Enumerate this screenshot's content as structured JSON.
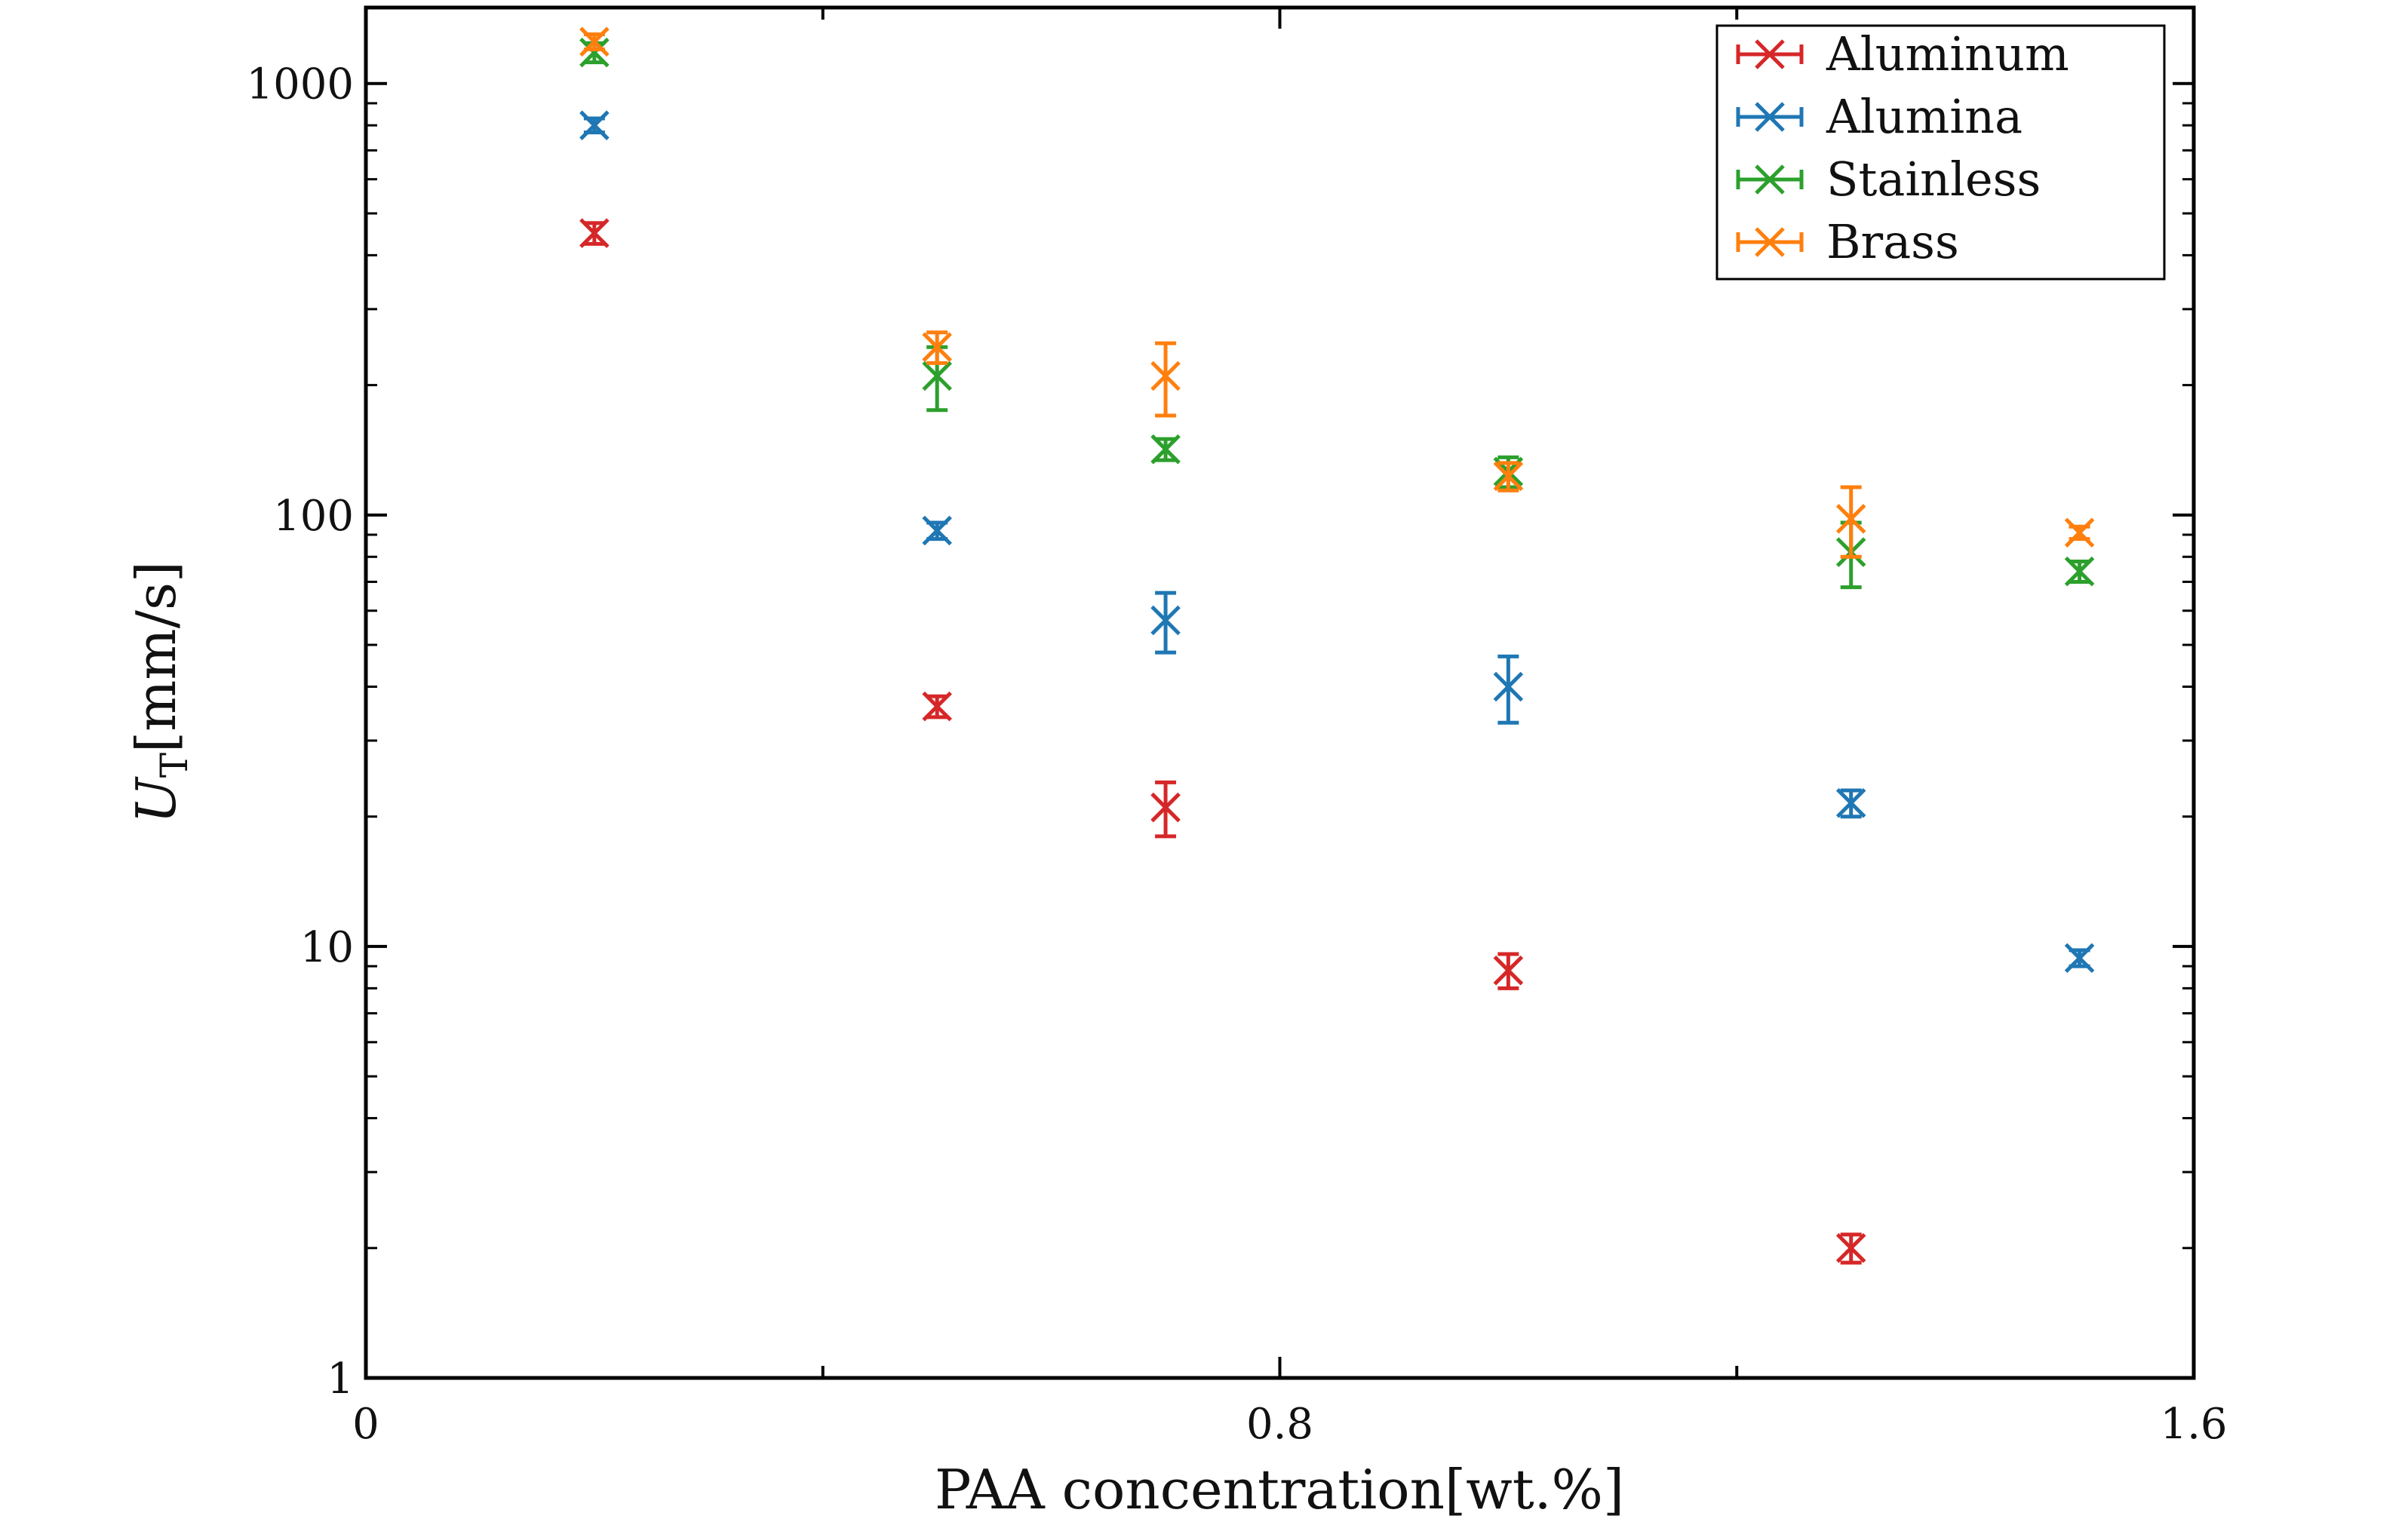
{
  "chart_data": {
    "type": "scatter",
    "title": "",
    "xlabel": "PAA concentration[wt.%]",
    "ylabel_main": "U",
    "ylabel_sub": "T",
    "ylabel_units": "[mm/s]",
    "xlim": [
      0,
      1.6
    ],
    "ylim": [
      1,
      1500
    ],
    "yscale": "log",
    "grid": false,
    "legend_position": "top-right",
    "x_ticks": [
      {
        "value": 0,
        "label": "0"
      },
      {
        "value": 0.8,
        "label": "0.8"
      },
      {
        "value": 1.6,
        "label": "1.6"
      }
    ],
    "x_minor_ticks": [
      0.4,
      1.2
    ],
    "y_ticks": [
      {
        "value": 1,
        "label": "1"
      },
      {
        "value": 10,
        "label": "10"
      },
      {
        "value": 100,
        "label": "100"
      },
      {
        "value": 1000,
        "label": "1000"
      }
    ],
    "series": [
      {
        "name": "Aluminum",
        "color": "#d62728",
        "marker": "x",
        "points": [
          {
            "x": 0.2,
            "y": 450,
            "err": 25
          },
          {
            "x": 0.5,
            "y": 36,
            "err": 2
          },
          {
            "x": 0.7,
            "y": 21,
            "err": 3
          },
          {
            "x": 1.0,
            "y": 8.8,
            "err": 0.8
          },
          {
            "x": 1.3,
            "y": 2.0,
            "err": 0.15
          }
        ]
      },
      {
        "name": "Alumina",
        "color": "#1f77b4",
        "marker": "x",
        "points": [
          {
            "x": 0.2,
            "y": 800,
            "err": 30
          },
          {
            "x": 0.5,
            "y": 92,
            "err": 4
          },
          {
            "x": 0.7,
            "y": 57,
            "err": 9
          },
          {
            "x": 1.0,
            "y": 40,
            "err": 7
          },
          {
            "x": 1.3,
            "y": 21.5,
            "err": 1.5
          },
          {
            "x": 1.5,
            "y": 9.4,
            "err": 0.4
          }
        ]
      },
      {
        "name": "Stainless",
        "color": "#2ca02c",
        "marker": "x",
        "points": [
          {
            "x": 0.2,
            "y": 1180,
            "err": 60
          },
          {
            "x": 0.5,
            "y": 210,
            "err": 35
          },
          {
            "x": 0.7,
            "y": 142,
            "err": 8
          },
          {
            "x": 1.0,
            "y": 126,
            "err": 10
          },
          {
            "x": 1.3,
            "y": 82,
            "err": 14
          },
          {
            "x": 1.5,
            "y": 74,
            "err": 4
          }
        ]
      },
      {
        "name": "Brass",
        "color": "#ff7f0e",
        "marker": "x",
        "points": [
          {
            "x": 0.2,
            "y": 1250,
            "err": 50
          },
          {
            "x": 0.5,
            "y": 245,
            "err": 20
          },
          {
            "x": 0.7,
            "y": 210,
            "err": 40
          },
          {
            "x": 1.0,
            "y": 123,
            "err": 9
          },
          {
            "x": 1.3,
            "y": 98,
            "err": 18
          },
          {
            "x": 1.5,
            "y": 91,
            "err": 3
          }
        ]
      }
    ]
  }
}
